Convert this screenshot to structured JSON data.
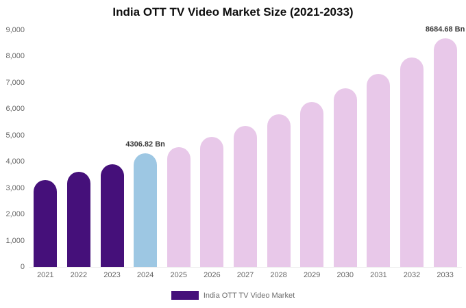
{
  "title": "India OTT TV Video Market Size (2021-2033)",
  "colors": {
    "historical": "#45107a",
    "current": "#9dc7e3",
    "forecast": "#e8c8e9",
    "axis_text": "#666666",
    "annotation_text": "#3a3a3a"
  },
  "legend": {
    "label": "India OTT TV Video Market",
    "swatch_color": "#45107a"
  },
  "chart_data": {
    "type": "bar",
    "title": "India OTT TV Video Market Size (2021-2033)",
    "categories": [
      "2021",
      "2022",
      "2023",
      "2024",
      "2025",
      "2026",
      "2027",
      "2028",
      "2029",
      "2030",
      "2031",
      "2032",
      "2033"
    ],
    "values": [
      3300,
      3620,
      3900,
      4306.82,
      4560,
      4950,
      5350,
      5800,
      6280,
      6780,
      7330,
      7970,
      8684.68
    ],
    "bar_colors": [
      "#45107a",
      "#45107a",
      "#45107a",
      "#9dc7e3",
      "#e8c8e9",
      "#e8c8e9",
      "#e8c8e9",
      "#e8c8e9",
      "#e8c8e9",
      "#e8c8e9",
      "#e8c8e9",
      "#e8c8e9",
      "#e8c8e9"
    ],
    "xlabel": "",
    "ylabel": "",
    "ylim": [
      0,
      9000
    ],
    "yticks": [
      "0",
      "1,000",
      "2,000",
      "3,000",
      "4,000",
      "5,000",
      "6,000",
      "7,000",
      "8,000",
      "9,000"
    ],
    "grid": false,
    "legend_position": "bottom",
    "annotations": [
      {
        "category": "2024",
        "text": "4306.82 Bn"
      },
      {
        "category": "2033",
        "text": "8684.68 Bn"
      }
    ],
    "legend_entries": [
      {
        "label": "India OTT TV Video Market",
        "color": "#45107a"
      }
    ]
  }
}
